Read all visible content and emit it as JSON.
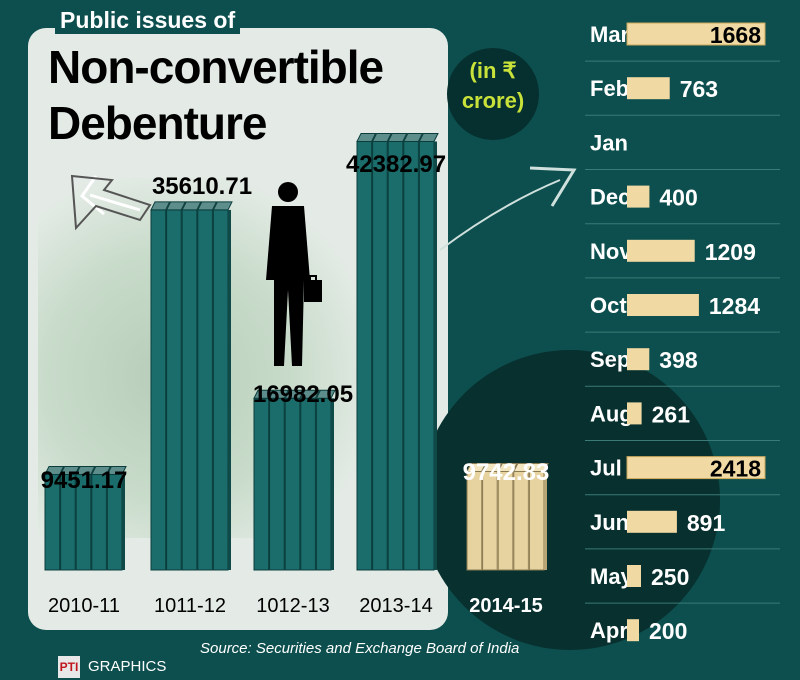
{
  "subtitle": "Public issues of",
  "title_line1": "Non-convertible",
  "title_line2": "Debenture",
  "unit_line1": "(in ₹",
  "unit_line2": "crore)",
  "source": "Source: Securities and Exchange Board of India",
  "brand": {
    "logo": "PTI",
    "text": "GRAPHICS"
  },
  "colors": {
    "background": "#0d4f4e",
    "bar_teal": "#1a6f6d",
    "bar_light": "#e8d7a8",
    "month_bar": "#f1d9a3",
    "panel": "#e4ebe6"
  },
  "chart_data": [
    {
      "type": "bar",
      "categories": [
        "2010-11",
        "1011-12",
        "1012-13",
        "2013-14",
        "2014-15"
      ],
      "values": [
        9451.17,
        35610.71,
        16982.05,
        42382.97,
        9742.83
      ],
      "value_labels": [
        "9451.17",
        "35610.71",
        "16982.05",
        "42382.97",
        "9742.83"
      ],
      "title": "Public issues of Non-convertible Debenture",
      "unit": "(in ₹ crore)",
      "ylim": [
        0,
        45000
      ],
      "grid": false
    },
    {
      "type": "bar",
      "orientation": "horizontal",
      "categories": [
        "Mar",
        "Feb",
        "Jan",
        "Dec",
        "Nov",
        "Oct",
        "Sep",
        "Aug",
        "Jul",
        "Jun",
        "May",
        "Apr"
      ],
      "values": [
        1668,
        763,
        0,
        400,
        1209,
        1284,
        398,
        261,
        2418,
        891,
        250,
        200
      ],
      "value_labels": [
        "1668",
        "763",
        "",
        "400",
        "1209",
        "1284",
        "398",
        "261",
        "2418",
        "891",
        "250",
        "200"
      ],
      "highlighted": [
        "Mar",
        "Jul"
      ],
      "xlim": [
        0,
        2500
      ],
      "grid": false
    }
  ]
}
